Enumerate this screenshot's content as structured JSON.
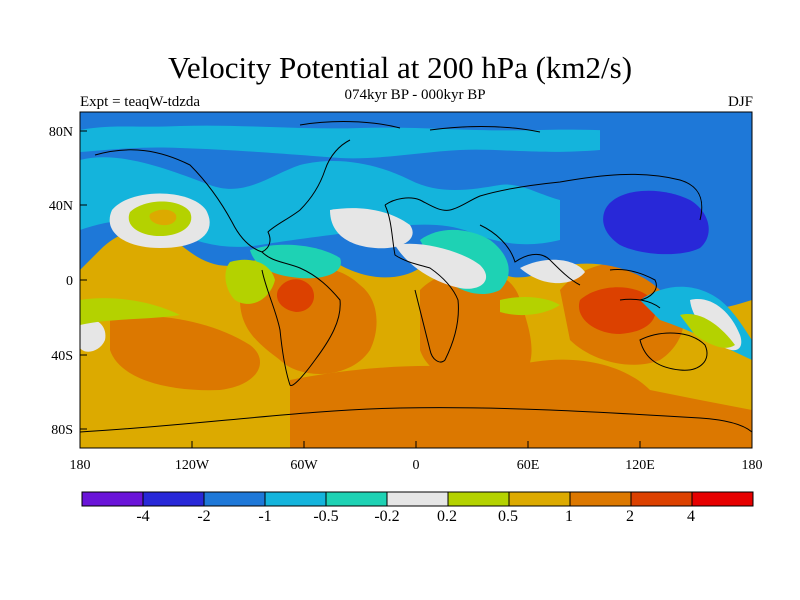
{
  "figure": {
    "title": "Velocity Potential at 200 hPa (km2/s)",
    "subtitle": "074kyr BP - 000kyr BP",
    "left_label": "Expt = teaqW-tdzda",
    "right_label": "DJF"
  },
  "map": {
    "projection": "cylindrical-equidistant",
    "lon_range": [
      -180,
      180
    ],
    "lat_range": [
      -90,
      90
    ],
    "x_ticks": [
      "180",
      "120W",
      "60W",
      "0",
      "60E",
      "120E",
      "180"
    ],
    "y_ticks": [
      "80N",
      "40N",
      "0",
      "40S",
      "80S"
    ]
  },
  "colorbar": {
    "colors": [
      "#6a14d8",
      "#2828d8",
      "#1e78d8",
      "#14b4dc",
      "#1ed2b4",
      "#e6e6e6",
      "#b4d200",
      "#dcaa00",
      "#dc7800",
      "#dc4100",
      "#e60000"
    ],
    "labels": [
      "-4",
      "-2",
      "-1",
      "-0.5",
      "-0.2",
      "0.2",
      "0.5",
      "1",
      "2",
      "4"
    ]
  },
  "chart_data": {
    "type": "heatmap",
    "title": "Velocity Potential at 200 hPa (km2/s)",
    "subtitle": "074kyr BP - 000kyr BP",
    "levels": [
      -4,
      -2,
      -1,
      -0.5,
      -0.2,
      0.2,
      0.5,
      1,
      2,
      4
    ],
    "regions": [
      {
        "region": "East Asia / NW Pacific (~35N, 125E)",
        "value_range": [
          -4,
          -2
        ]
      },
      {
        "region": "North Pacific / North Atlantic / Arctic",
        "value_range": [
          -1,
          -0.5
        ]
      },
      {
        "region": "Maritime Continent (~0, 110E)",
        "value_range": [
          2,
          4
        ]
      },
      {
        "region": "Amazon (~0, 65W)",
        "value_range": [
          2,
          4
        ]
      },
      {
        "region": "Southern Ocean / Antarctica",
        "value_range": [
          1,
          2
        ]
      },
      {
        "region": "Southern Africa / South Atlantic",
        "value_range": [
          1,
          2
        ]
      },
      {
        "region": "Subtropical N Pacific (~25N, 160W)",
        "value_range": [
          0.2,
          1
        ]
      }
    ]
  }
}
